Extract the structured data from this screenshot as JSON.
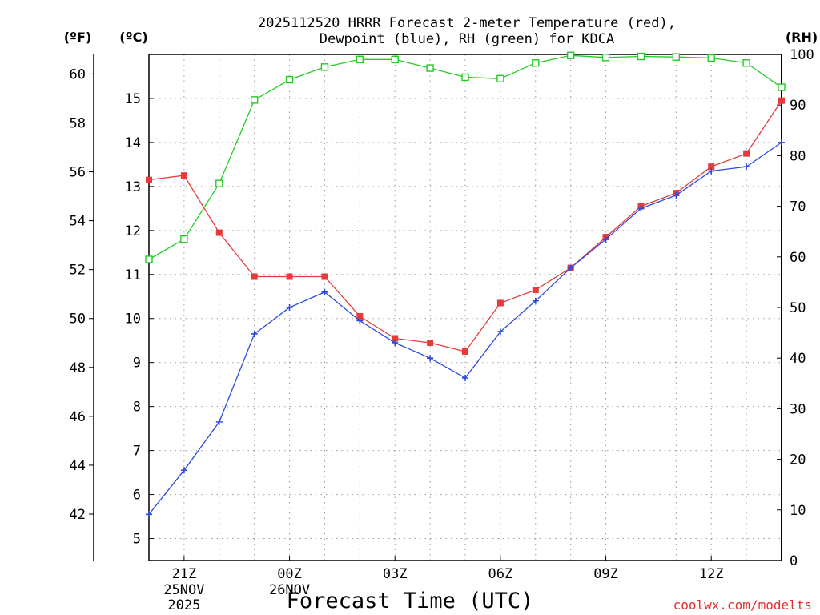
{
  "title_line1": "2025112520 HRRR Forecast 2-meter Temperature (red),",
  "title_line2": "Dewpoint (blue), RH (green) for KDCA",
  "unit_f": "(ºF)",
  "unit_c": "(ºC)",
  "unit_rh": "(RH)",
  "xlabel": "Forecast Time (UTC)",
  "credit": "coolwx.com/modelts",
  "colors": {
    "temperature": "#e83a3a",
    "dewpoint": "#2a4be0",
    "rh": "#22cc22"
  },
  "chart_data": {
    "type": "line",
    "x_hours": [
      20,
      21,
      22,
      23,
      24,
      25,
      26,
      27,
      28,
      29,
      30,
      31,
      32,
      33,
      34,
      35,
      36,
      37,
      38
    ],
    "x_ticks": [
      {
        "hour": 21,
        "label": "21Z",
        "label2": "25NOV",
        "label3": "2025"
      },
      {
        "hour": 24,
        "label": "00Z",
        "label2": "26NOV",
        "label3": ""
      },
      {
        "hour": 27,
        "label": "03Z",
        "label2": "",
        "label3": ""
      },
      {
        "hour": 30,
        "label": "06Z",
        "label2": "",
        "label3": ""
      },
      {
        "hour": 33,
        "label": "09Z",
        "label2": "",
        "label3": ""
      },
      {
        "hour": 36,
        "label": "12Z",
        "label2": "",
        "label3": ""
      }
    ],
    "xlim": [
      20,
      38
    ],
    "y_celsius": {
      "ylim": [
        4.5,
        16.0
      ],
      "ticks": [
        5,
        6,
        7,
        8,
        9,
        10,
        11,
        12,
        13,
        14,
        15
      ]
    },
    "y_fahrenheit": {
      "ticks": [
        42,
        44,
        46,
        48,
        50,
        52,
        54,
        56,
        58,
        60
      ]
    },
    "y_rh": {
      "ylim": [
        0,
        100
      ],
      "ticks": [
        0,
        10,
        20,
        30,
        40,
        50,
        60,
        70,
        80,
        90,
        100
      ]
    },
    "series": [
      {
        "name": "Temperature (°C)",
        "key": "temperature",
        "axis": "celsius",
        "marker": "filled-square",
        "values": [
          13.15,
          13.25,
          11.95,
          10.95,
          10.95,
          10.95,
          10.05,
          9.55,
          9.45,
          9.25,
          10.35,
          10.65,
          11.15,
          11.85,
          12.55,
          12.85,
          13.45,
          13.75,
          14.95
        ]
      },
      {
        "name": "Dewpoint (°C)",
        "key": "dewpoint",
        "axis": "celsius",
        "marker": "plus",
        "values": [
          5.55,
          6.55,
          7.65,
          9.65,
          10.25,
          10.6,
          9.95,
          9.45,
          9.1,
          8.65,
          9.7,
          10.4,
          11.15,
          11.8,
          12.5,
          12.8,
          13.35,
          13.45,
          14.0
        ]
      },
      {
        "name": "RH (%)",
        "key": "rh",
        "axis": "rh",
        "marker": "open-square",
        "values": [
          59.5,
          63.5,
          74.5,
          91,
          95,
          97.5,
          99,
          99,
          97.3,
          95.5,
          95.2,
          98.3,
          99.8,
          99.4,
          99.6,
          99.5,
          99.3,
          98.3,
          93.5
        ]
      }
    ]
  }
}
